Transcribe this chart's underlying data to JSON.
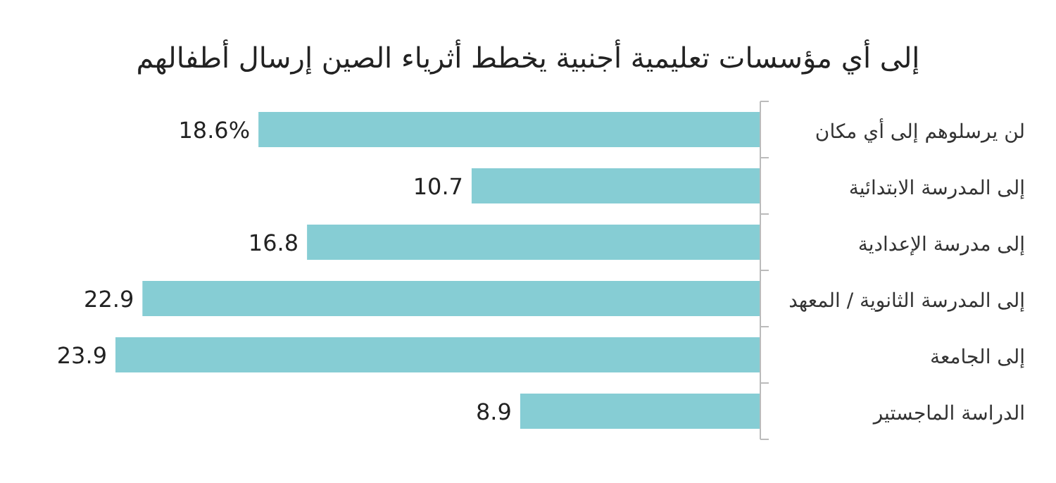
{
  "chart_data": {
    "type": "bar",
    "orientation": "horizontal",
    "title": "إلى أي مؤسسات تعليمية أجنبية يخطط أثرياء الصين إرسال أطفالهم",
    "categories": [
      "لن يرسلوهم إلى أي مكان",
      "إلى المدرسة الابتدائية",
      "إلى مدرسة الإعدادية",
      "إلى المدرسة الثانوية / المعهد",
      "إلى الجامعة",
      "الدراسة الماجستير"
    ],
    "values": [
      18.6,
      10.7,
      16.8,
      22.9,
      23.9,
      8.9
    ],
    "value_labels": [
      "18.6%",
      "10.7",
      "16.8",
      "22.9",
      "23.9",
      "8.9"
    ],
    "color": "#86cdd4"
  }
}
